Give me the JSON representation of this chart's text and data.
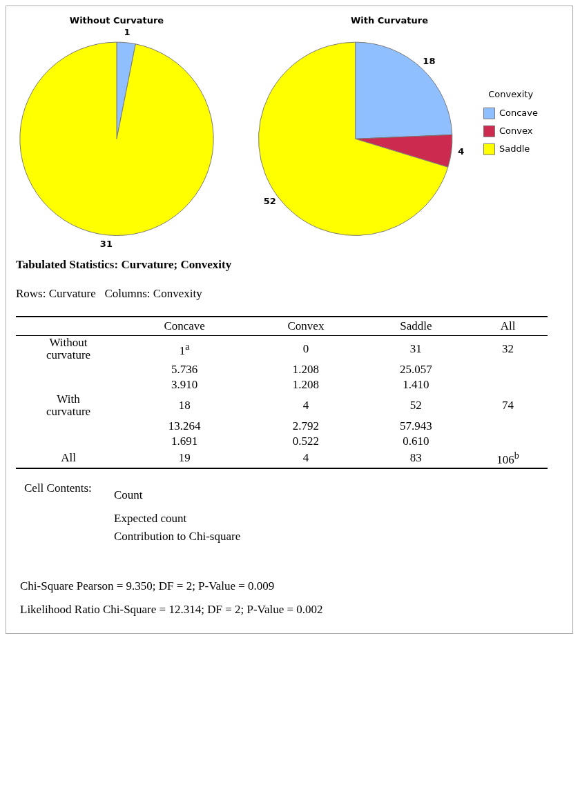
{
  "chart_data": [
    {
      "type": "pie",
      "title": "Without Curvature",
      "categories": [
        null,
        null,
        null
      ],
      "values": [
        1,
        0,
        31
      ],
      "colors": [
        "#8fbfff",
        "#cc2a4f",
        "#ffff00"
      ],
      "value_labels": [
        "1",
        null,
        "31"
      ]
    },
    {
      "type": "pie",
      "title": "With Curvature",
      "categories": [
        "Concave",
        "Convex",
        "Saddle"
      ],
      "values": [
        18,
        4,
        52
      ],
      "colors": [
        "#8fbfff",
        "#cc2a4f",
        "#ffff00"
      ],
      "data_labels": true,
      "legend": "right",
      "legend_title": "Convexity"
    },
    {
      "type": "heatmap",
      "title": "Tabulated Statistics: Curvature; Convexity",
      "subtitle": "Rows: Curvature   Columns: Convexity",
      "categories": [
        "Concave",
        "Convex",
        "Saddle",
        "All"
      ],
      "y_categories": [
        "Without curvature",
        null,
        null,
        "With curvature",
        null,
        null,
        "All"
      ],
      "cells": [
        [
          1,
          0,
          31,
          32
        ],
        [
          5.736,
          1.208,
          25.057,
          null
        ],
        [
          3.91,
          1.208,
          1.41,
          null
        ],
        [
          18,
          4,
          52,
          74
        ],
        [
          13.264,
          2.792,
          57.943,
          null
        ],
        [
          1.691,
          0.522,
          0.61,
          null
        ],
        [
          19,
          4,
          83,
          106
        ]
      ],
      "cell_labels": [
        [
          "1$^{a}$",
          "0",
          "31",
          "32"
        ],
        [
          "5.736",
          "1.208",
          "25.057",
          null
        ],
        [
          "3.910",
          "1.208",
          "1.410",
          null
        ],
        [
          "18",
          "4",
          "52",
          "74"
        ],
        [
          "13.264",
          "2.792",
          "57.943",
          null
        ],
        [
          "1.691",
          "0.522",
          "0.610",
          null
        ],
        [
          "19",
          "4",
          "83",
          "106$^{b}$"
        ]
      ],
      "annotations": [
        "Cell Contents:",
        "Count",
        "Expected count",
        "Contribution to Chi-square",
        "Chi-Square Pearson = 9.350; DF = 2; P-Value = 0.009",
        "Likelihood Ratio Chi-Square = 12.314; DF = 2; P-Value = 0.002"
      ]
    }
  ]
}
